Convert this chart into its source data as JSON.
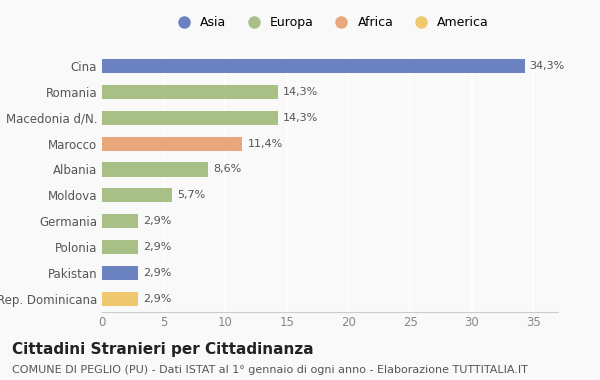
{
  "categories": [
    "Rep. Dominicana",
    "Pakistan",
    "Polonia",
    "Germania",
    "Moldova",
    "Albania",
    "Marocco",
    "Macedonia d/N.",
    "Romania",
    "Cina"
  ],
  "values": [
    2.9,
    2.9,
    2.9,
    2.9,
    5.7,
    8.6,
    11.4,
    14.3,
    14.3,
    34.3
  ],
  "labels": [
    "2,9%",
    "2,9%",
    "2,9%",
    "2,9%",
    "5,7%",
    "8,6%",
    "11,4%",
    "14,3%",
    "14,3%",
    "34,3%"
  ],
  "colors": [
    "#f0c96e",
    "#6b82c0",
    "#a8bf87",
    "#a8bf87",
    "#a8bf87",
    "#a8bf87",
    "#e8a87c",
    "#a8bf87",
    "#a8bf87",
    "#6b82c0"
  ],
  "legend": [
    {
      "label": "Asia",
      "color": "#6b82c0"
    },
    {
      "label": "Europa",
      "color": "#a8bf87"
    },
    {
      "label": "Africa",
      "color": "#e8a87c"
    },
    {
      "label": "America",
      "color": "#f0c96e"
    }
  ],
  "title": "Cittadini Stranieri per Cittadinanza",
  "subtitle": "COMUNE DI PEGLIO (PU) - Dati ISTAT al 1° gennaio di ogni anno - Elaborazione TUTTITALIA.IT",
  "xlim": [
    0,
    37
  ],
  "xticks": [
    0,
    5,
    10,
    15,
    20,
    25,
    30,
    35
  ],
  "background_color": "#f9f9f9",
  "bar_height": 0.55,
  "title_fontsize": 11,
  "subtitle_fontsize": 8,
  "label_fontsize": 8,
  "tick_fontsize": 8.5,
  "legend_fontsize": 9
}
